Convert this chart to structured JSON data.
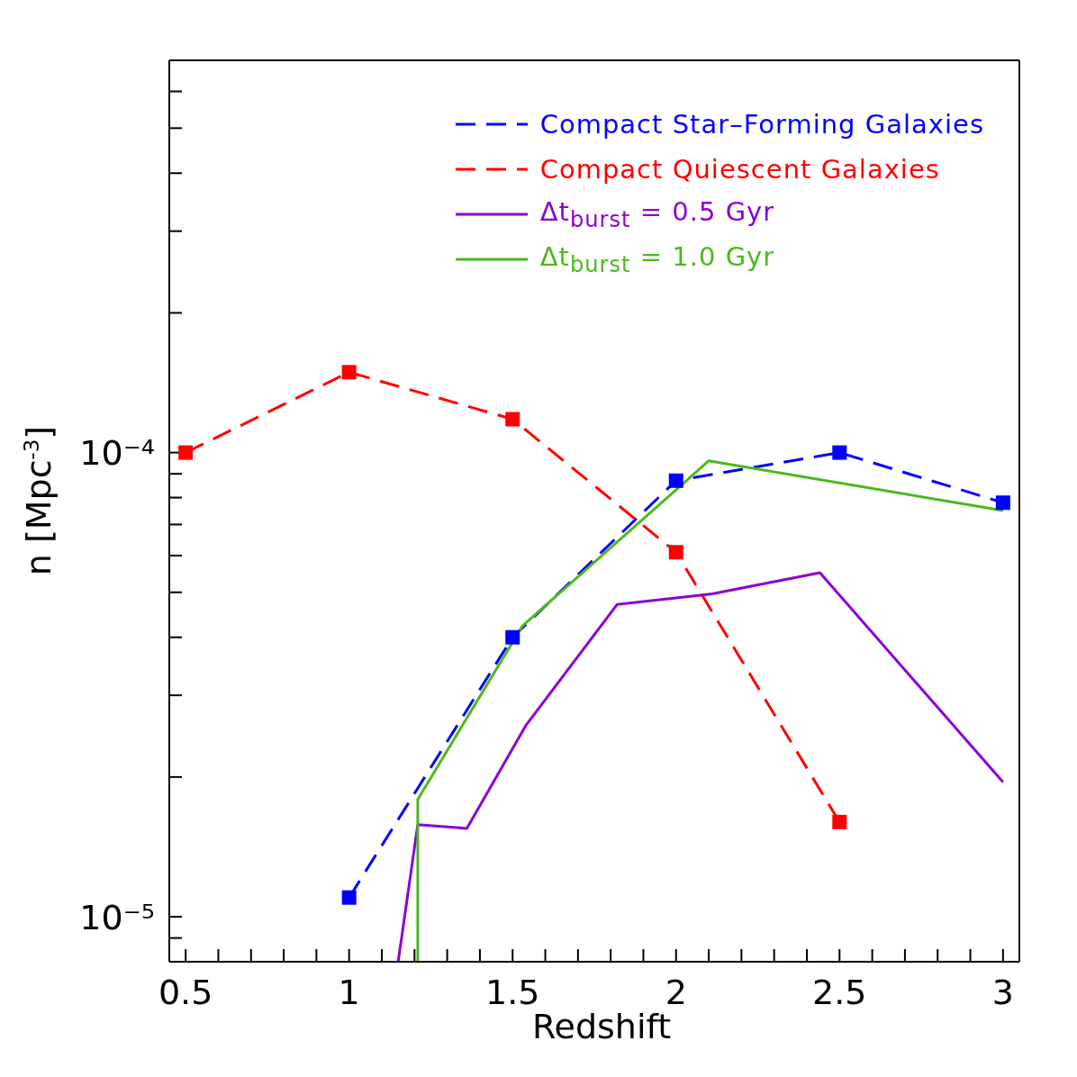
{
  "chart_data": {
    "type": "line",
    "xlabel": "Redshift",
    "ylabel": "n [Mpc$^{-3}$]",
    "log": "y",
    "legend": "top right",
    "xlim": [
      0.45,
      3.05
    ],
    "xticks": [
      0.5,
      {
        "value": 0.6,
        "label": null
      },
      {
        "value": 0.7,
        "label": null
      },
      {
        "value": 0.8,
        "label": null
      },
      {
        "value": 0.9,
        "label": null
      },
      1,
      {
        "value": 1.1,
        "label": null
      },
      {
        "value": 1.2,
        "label": null
      },
      {
        "value": 1.3,
        "label": null
      },
      {
        "value": 1.4,
        "label": null
      },
      1.5,
      {
        "value": 1.6,
        "label": null
      },
      {
        "value": 1.7,
        "label": null
      },
      {
        "value": 1.8,
        "label": null
      },
      {
        "value": 1.9,
        "label": null
      },
      2,
      {
        "value": 2.1,
        "label": null
      },
      {
        "value": 2.2,
        "label": null
      },
      {
        "value": 2.3,
        "label": null
      },
      {
        "value": 2.4,
        "label": null
      },
      2.5,
      {
        "value": 2.6,
        "label": null
      },
      {
        "value": 2.7,
        "label": null
      },
      {
        "value": 2.8,
        "label": null
      },
      {
        "value": 2.9,
        "label": null
      },
      3
    ],
    "ylim": [
      8e-06,
      0.0007
    ],
    "yticks": [
      {
        "value": 9e-06,
        "label": null
      },
      {
        "value": 1e-05,
        "label": "10⁻⁵"
      },
      {
        "value": 2e-05,
        "label": null
      },
      {
        "value": 3e-05,
        "label": null
      },
      {
        "value": 4e-05,
        "label": null
      },
      {
        "value": 5e-05,
        "label": null
      },
      {
        "value": 6e-05,
        "label": null
      },
      {
        "value": 7e-05,
        "label": null
      },
      {
        "value": 8e-05,
        "label": null
      },
      {
        "value": 9e-05,
        "label": null
      },
      {
        "value": 0.0001,
        "label": "10⁻⁴"
      },
      {
        "value": 0.0002,
        "label": null
      },
      {
        "value": 0.0003,
        "label": null
      },
      {
        "value": 0.0004,
        "label": null
      },
      {
        "value": 0.0005,
        "label": null
      },
      {
        "value": 0.0006,
        "label": null
      }
    ],
    "series": [
      {
        "name": "Compact Star–Forming Galaxies",
        "color": "#0000ff",
        "line_style": "dashed",
        "marker": "square",
        "x": [
          1,
          1.5,
          2,
          2.5,
          3
        ],
        "values": [
          1.1e-05,
          4e-05,
          8.7e-05,
          0.0001,
          7.8e-05
        ]
      },
      {
        "name": "Compact Quiescent Galaxies",
        "color": "#ff0000",
        "line_style": "dashed",
        "marker": "square",
        "x": [
          0.5,
          1,
          1.5,
          2,
          2.5
        ],
        "values": [
          0.0001,
          0.000149,
          0.000118,
          6.1e-05,
          1.6e-05
        ]
      },
      {
        "name": "Δt$_{burst}$ = 0.5 Gyr",
        "color": "#8b00d6",
        "line_style": "solid",
        "marker": "none",
        "x": [
          1.15,
          1.21,
          1.36,
          1.54,
          1.82,
          2.11,
          2.44,
          3.0
        ],
        "values": [
          8e-06,
          1.58e-05,
          1.55e-05,
          2.58e-05,
          4.71e-05,
          4.96e-05,
          5.51e-05,
          1.95e-05
        ]
      },
      {
        "name": "Δt$_{burst}$ = 1.0 Gyr",
        "color": "#4cb81c",
        "line_style": "solid",
        "marker": "none",
        "x": [
          1.21,
          1.21,
          1.53,
          2.1,
          3.0
        ],
        "values": [
          8e-06,
          1.79e-05,
          4.23e-05,
          9.6e-05,
          7.5e-05
        ]
      }
    ]
  }
}
